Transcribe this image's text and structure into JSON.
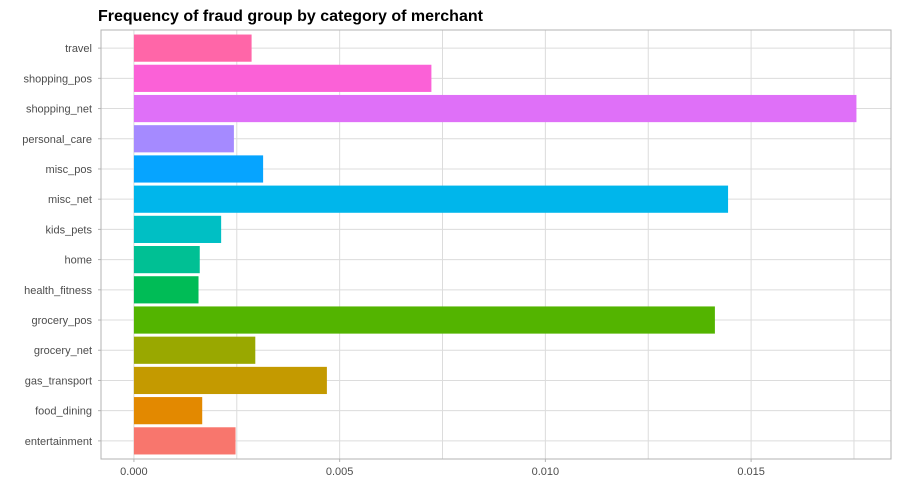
{
  "chart_data": {
    "type": "bar",
    "orientation": "horizontal",
    "title": "Frequency of fraud group by category of merchant",
    "xlabel": "",
    "ylabel": "",
    "categories": [
      "entertainment",
      "food_dining",
      "gas_transport",
      "grocery_net",
      "grocery_pos",
      "health_fitness",
      "home",
      "kids_pets",
      "misc_net",
      "misc_pos",
      "personal_care",
      "shopping_net",
      "shopping_pos",
      "travel"
    ],
    "values": [
      0.00247,
      0.00166,
      0.00469,
      0.00295,
      0.01412,
      0.00157,
      0.0016,
      0.00212,
      0.01444,
      0.00314,
      0.00243,
      0.01756,
      0.00723,
      0.00286
    ],
    "colors": [
      "#F8766D",
      "#E38900",
      "#C49A00",
      "#99A800",
      "#53B400",
      "#00BC56",
      "#00C094",
      "#00BFC4",
      "#00B6EB",
      "#06A4FF",
      "#A58AFF",
      "#DF70F8",
      "#FB61D7",
      "#FF66A8"
    ],
    "xlim": [
      -0.0008,
      0.0184
    ],
    "xticks": [
      0,
      0.005,
      0.01,
      0.015
    ],
    "xtick_labels": [
      "0.000",
      "0.005",
      "0.010",
      "0.015"
    ],
    "grid": true,
    "legend": "none"
  }
}
